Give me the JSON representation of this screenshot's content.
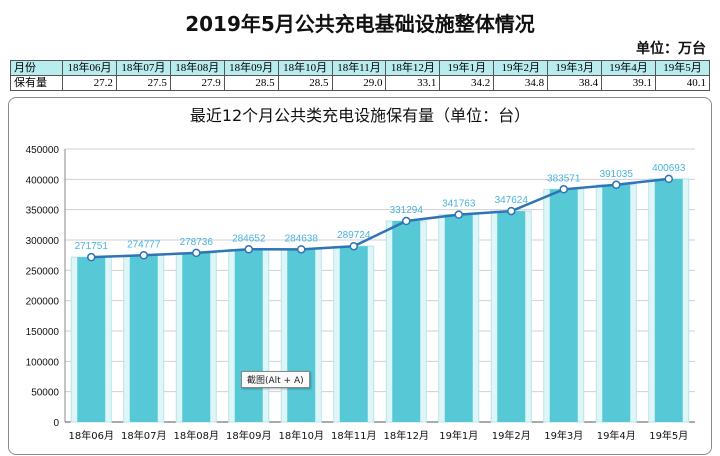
{
  "header": {
    "title": "2019年5月公共充电基础设施整体情况",
    "unit": "单位：万台"
  },
  "table": {
    "row_labels": [
      "月份",
      "保有量"
    ],
    "months": [
      "18年06月",
      "18年07月",
      "18年08月",
      "18年09月",
      "18年10月",
      "18年11月",
      "18年12月",
      "19年1月",
      "19年2月",
      "19年3月",
      "19年4月",
      "19年5月"
    ],
    "values": [
      "27.2",
      "27.5",
      "27.9",
      "28.5",
      "28.5",
      "29.0",
      "33.1",
      "34.2",
      "34.8",
      "38.4",
      "39.1",
      "40.1"
    ]
  },
  "tooltip": "截图(Alt + A)",
  "colors": {
    "bar_light": "#dff6f8",
    "bar_main": "#57c8d6",
    "line": "#2f74b5",
    "label": "#4bb3dc"
  },
  "chart_data": {
    "type": "bar",
    "title": "最近12个月公共类充电设施保有量（单位：台）",
    "categories": [
      "18年06月",
      "18年07月",
      "18年08月",
      "18年09月",
      "18年10月",
      "18年11月",
      "18年12月",
      "19年1月",
      "19年2月",
      "19年3月",
      "19年4月",
      "19年5月"
    ],
    "series": [
      {
        "values": [
          271751,
          274777,
          278736,
          284652,
          284638,
          289724,
          331294,
          341763,
          347624,
          383571,
          391035,
          400693
        ]
      }
    ],
    "overlay_line": true,
    "data_labels": true,
    "ylim": [
      0,
      450000
    ],
    "yticks": [
      0,
      50000,
      100000,
      150000,
      200000,
      250000,
      300000,
      350000,
      400000,
      450000
    ],
    "grid": true,
    "legend": "none"
  }
}
